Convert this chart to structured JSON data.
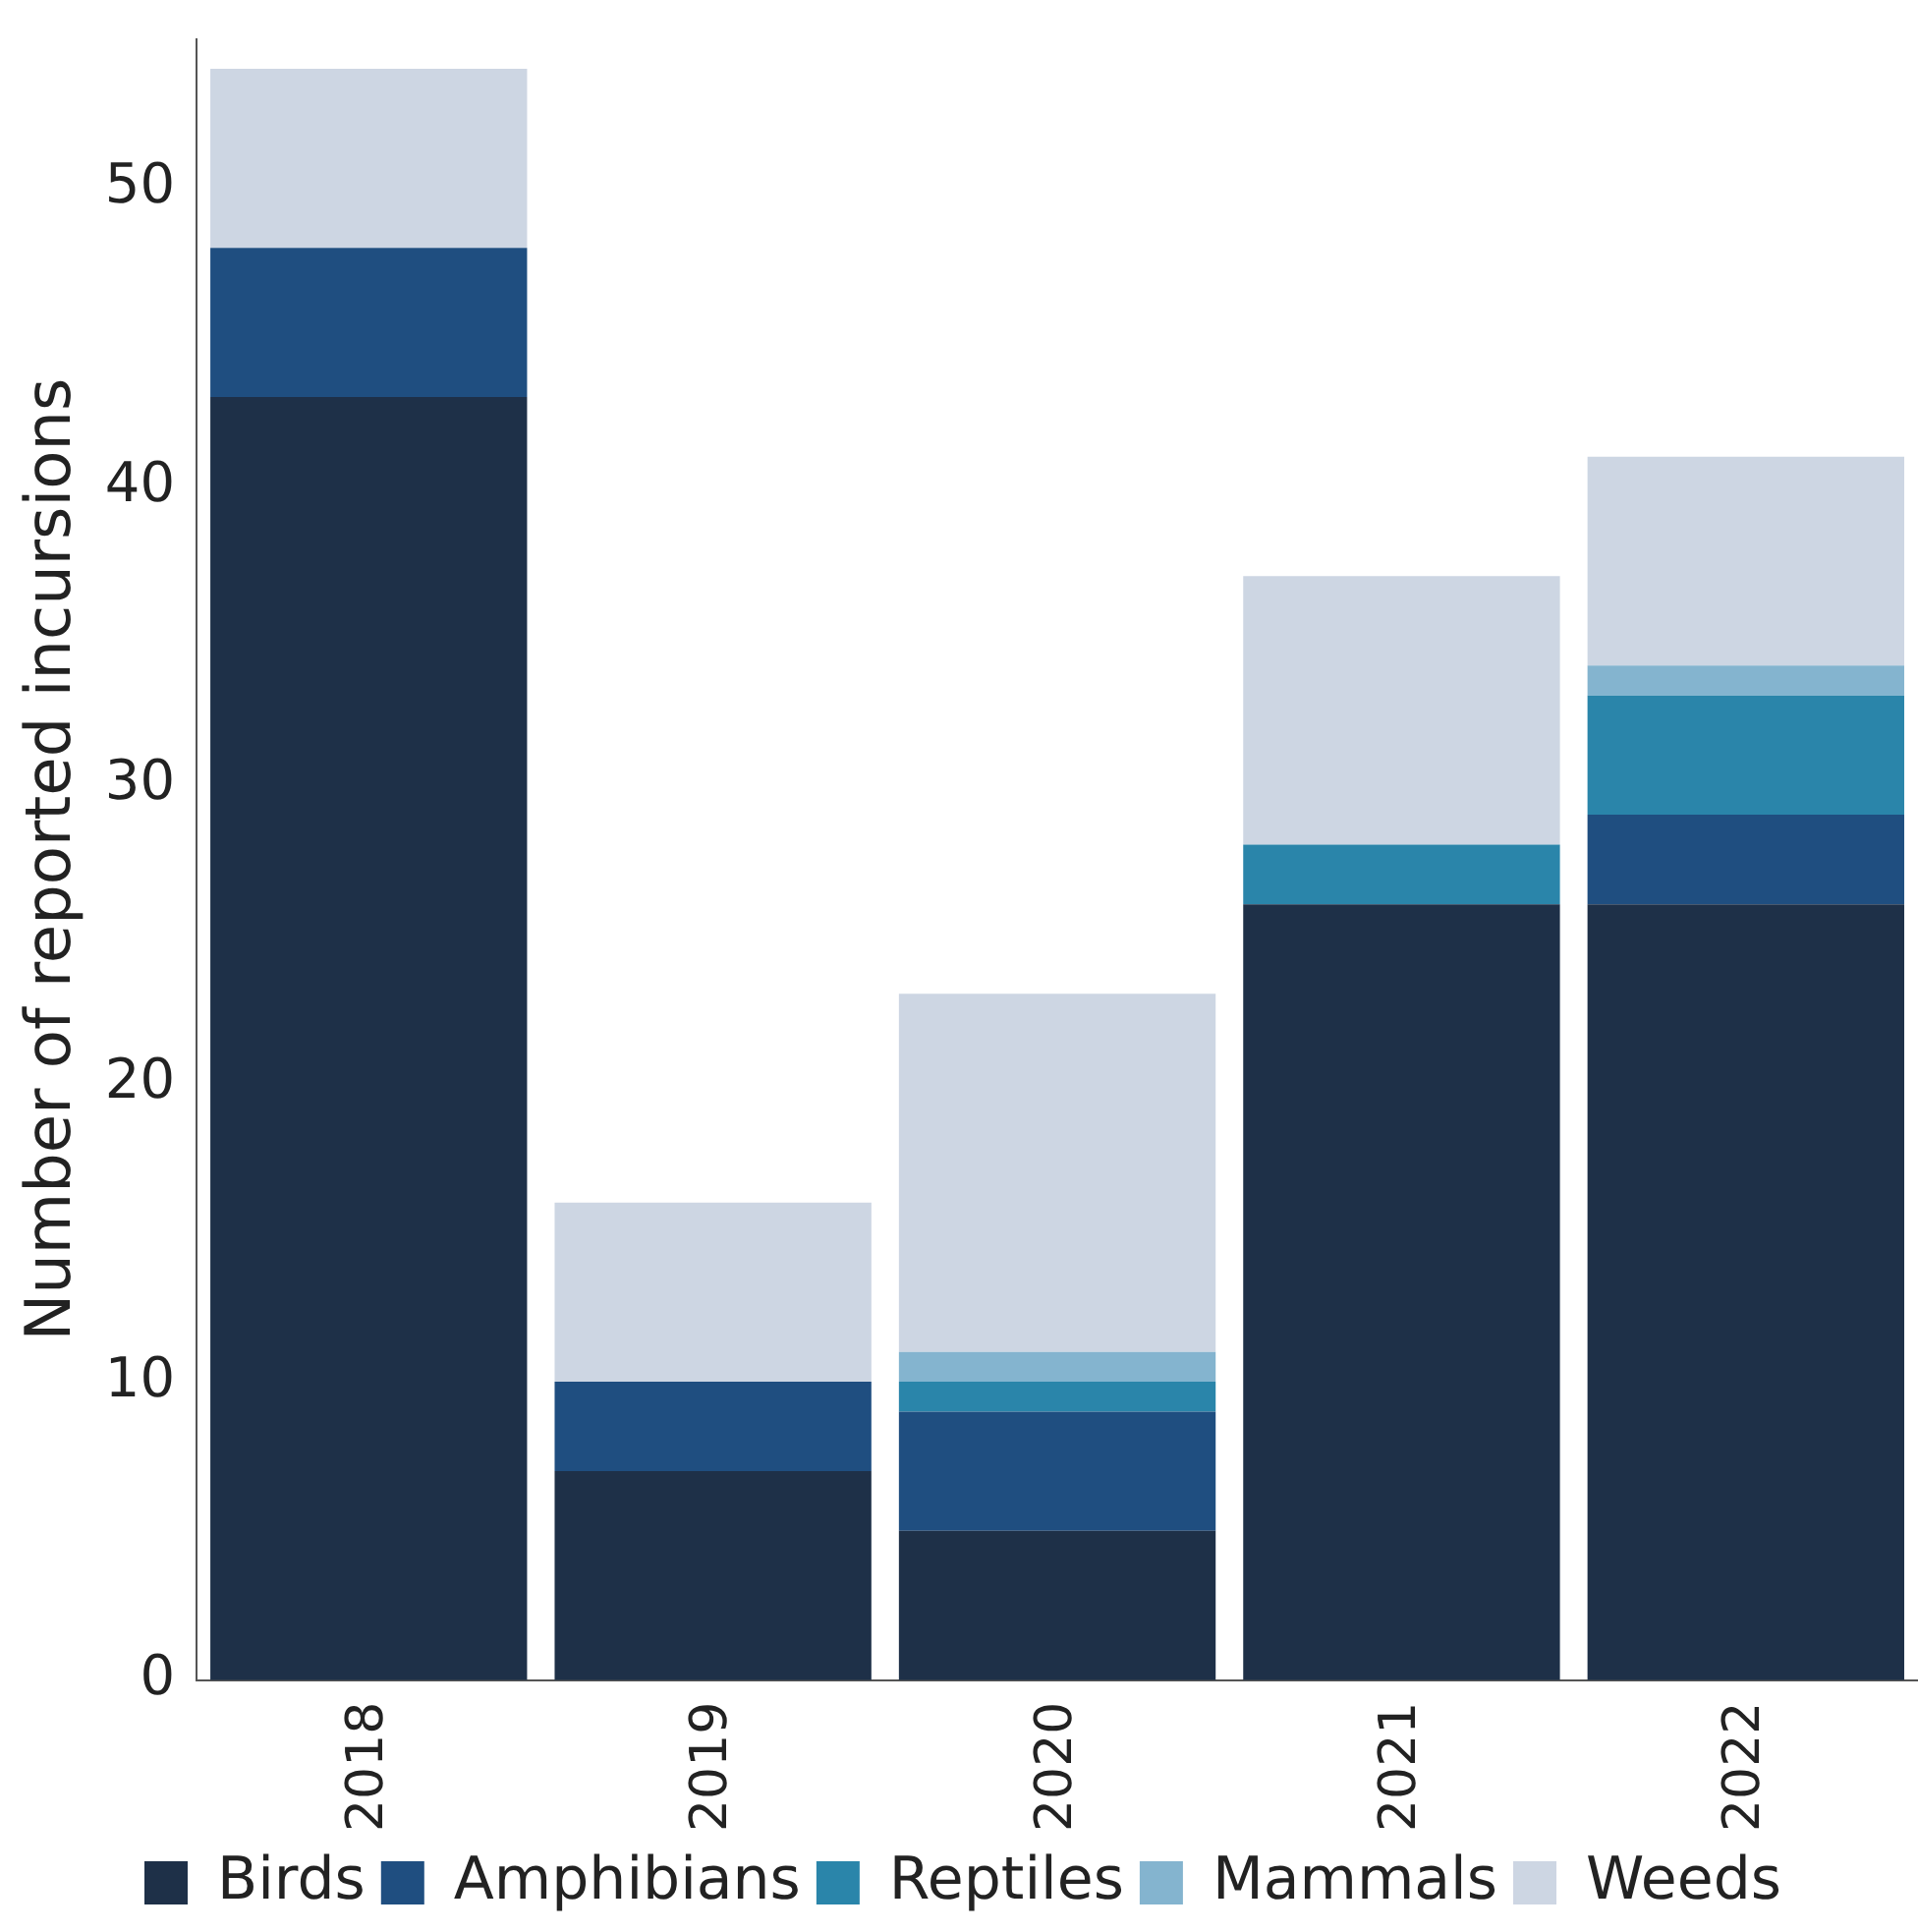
{
  "chart_data": {
    "type": "bar",
    "stacked": true,
    "ylabel": "Number of reported incursions",
    "categories": [
      "2018",
      "2019",
      "2020",
      "2021",
      "2022"
    ],
    "series": [
      {
        "name": "Birds",
        "color": "#1e3048",
        "values": [
          43,
          7,
          5,
          26,
          26
        ]
      },
      {
        "name": "Amphibians",
        "color": "#1f4e80",
        "values": [
          5,
          3,
          4,
          0,
          3
        ]
      },
      {
        "name": "Reptiles",
        "color": "#2a85aa",
        "values": [
          0,
          0,
          1,
          2,
          4
        ]
      },
      {
        "name": "Mammals",
        "color": "#84b4cf",
        "values": [
          0,
          0,
          1,
          0,
          1
        ]
      },
      {
        "name": "Weeds",
        "color": "#cdd6e3",
        "values": [
          6,
          6,
          12,
          9,
          7
        ]
      }
    ],
    "ylim": [
      0,
      55
    ],
    "yticks": [
      0,
      10,
      20,
      30,
      40,
      50
    ],
    "grid": false,
    "legend": "bottom"
  }
}
